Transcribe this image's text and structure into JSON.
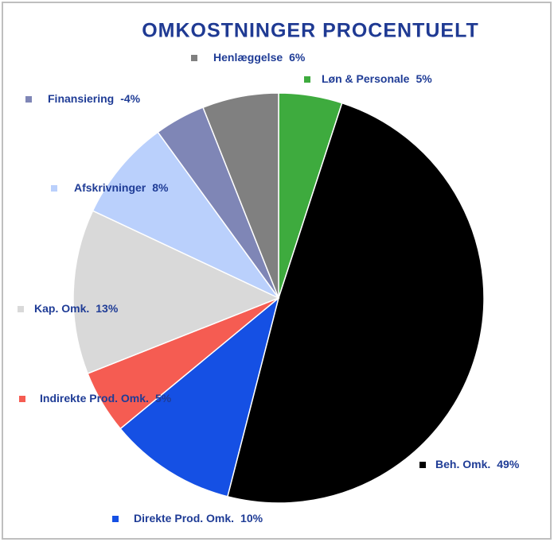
{
  "chart_data": {
    "type": "pie",
    "title": "OMKOSTNINGER PROCENTUELT",
    "categories": [
      "Løn & Personale",
      "Beh. Omk.",
      "Direkte Prod. Omk.",
      "Indirekte Prod. Omk.",
      "Kap. Omk.",
      "Afskrivninger",
      "Finansiering",
      "Henlæggelse"
    ],
    "values": [
      5,
      49,
      10,
      5,
      13,
      8,
      -4,
      6
    ],
    "value_labels": [
      "5%",
      "49%",
      "10%",
      "5%",
      "13%",
      "8%",
      "-4%",
      "6%"
    ],
    "colors": [
      "#3eab3e",
      "#000000",
      "#1550e4",
      "#f55c52",
      "#d9d9d9",
      "#bad0fc",
      "#7f86b6",
      "#808080"
    ]
  }
}
